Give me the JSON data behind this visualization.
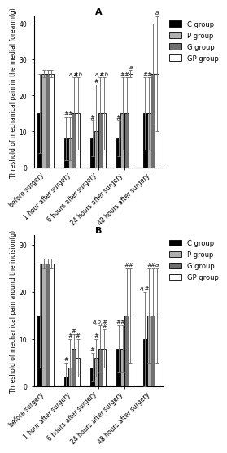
{
  "panel_A": {
    "title": "A",
    "ylabel": "Threshold of mechanical pain in the medial forearm(g)",
    "ylim": [
      0,
      42
    ],
    "yticks": [
      0,
      10,
      20,
      30,
      40
    ],
    "categories": [
      "before surgery",
      "1 hour after surgery",
      "6 hours after surgery",
      "24 hours after surgery",
      "48 hours after surgery"
    ],
    "bar_values": {
      "C": [
        15,
        8,
        8,
        8,
        15
      ],
      "P": [
        26,
        8,
        10,
        15,
        15
      ],
      "G": [
        26,
        15,
        15,
        15,
        26
      ],
      "GP": [
        26,
        15,
        15,
        26,
        26
      ]
    },
    "error_values": {
      "C": [
        11,
        6,
        5,
        5,
        10
      ],
      "P": [
        1,
        6,
        13,
        10,
        10
      ],
      "G": [
        1,
        10,
        10,
        10,
        14
      ],
      "GP": [
        1,
        10,
        10,
        1,
        16
      ]
    },
    "annot_per_group": [
      {
        "time_idx": 1,
        "group": "C",
        "text": "#"
      },
      {
        "time_idx": 1,
        "group": "P",
        "text": "#"
      },
      {
        "time_idx": 1,
        "group": "G",
        "text": "a,#"
      },
      {
        "time_idx": 1,
        "group": "GP",
        "text": "a,b"
      },
      {
        "time_idx": 2,
        "group": "C",
        "text": "#"
      },
      {
        "time_idx": 2,
        "group": "P",
        "text": "#"
      },
      {
        "time_idx": 2,
        "group": "G",
        "text": "a,#"
      },
      {
        "time_idx": 2,
        "group": "GP",
        "text": "a,b"
      },
      {
        "time_idx": 3,
        "group": "C",
        "text": "#"
      },
      {
        "time_idx": 3,
        "group": "P",
        "text": "#"
      },
      {
        "time_idx": 3,
        "group": "G",
        "text": "#"
      },
      {
        "time_idx": 3,
        "group": "GP",
        "text": "a"
      },
      {
        "time_idx": 4,
        "group": "C",
        "text": "#"
      },
      {
        "time_idx": 4,
        "group": "P",
        "text": "#"
      },
      {
        "time_idx": 4,
        "group": "GP",
        "text": "a"
      }
    ]
  },
  "panel_B": {
    "title": "B",
    "ylabel": "Threshold of mechanical pain around the incision(g)",
    "ylim": [
      0,
      32
    ],
    "yticks": [
      0,
      10,
      20,
      30
    ],
    "categories": [
      "before surgery",
      "1 hour after surgery",
      "6 hours after surgery",
      "24 hours after surgery",
      "48 hours after surgery"
    ],
    "bar_values": {
      "C": [
        15,
        2,
        4,
        8,
        10
      ],
      "P": [
        26,
        4,
        6,
        8,
        15
      ],
      "G": [
        26,
        8,
        8,
        15,
        15
      ],
      "GP": [
        26,
        6,
        8,
        15,
        15
      ]
    },
    "error_values": {
      "C": [
        11,
        3,
        3,
        5,
        10
      ],
      "P": [
        1,
        6,
        4,
        5,
        10
      ],
      "G": [
        1,
        3,
        5,
        10,
        10
      ],
      "GP": [
        1,
        4,
        4,
        10,
        10
      ]
    },
    "annot_per_group": [
      {
        "time_idx": 1,
        "group": "C",
        "text": "#"
      },
      {
        "time_idx": 1,
        "group": "P",
        "text": "#"
      },
      {
        "time_idx": 1,
        "group": "G",
        "text": "#"
      },
      {
        "time_idx": 1,
        "group": "GP",
        "text": "#"
      },
      {
        "time_idx": 2,
        "group": "C",
        "text": "#"
      },
      {
        "time_idx": 2,
        "group": "P",
        "text": "#"
      },
      {
        "time_idx": 2,
        "group": "G",
        "text": "a,b,#"
      },
      {
        "time_idx": 2,
        "group": "GP",
        "text": "#"
      },
      {
        "time_idx": 3,
        "group": "C",
        "text": "#"
      },
      {
        "time_idx": 3,
        "group": "P",
        "text": "#"
      },
      {
        "time_idx": 3,
        "group": "G",
        "text": "#"
      },
      {
        "time_idx": 3,
        "group": "GP",
        "text": "#"
      },
      {
        "time_idx": 4,
        "group": "C",
        "text": "a,#"
      },
      {
        "time_idx": 4,
        "group": "P",
        "text": "#"
      },
      {
        "time_idx": 4,
        "group": "G",
        "text": "#"
      },
      {
        "time_idx": 4,
        "group": "GP",
        "text": "a"
      }
    ]
  },
  "bar_colors": {
    "C": "#000000",
    "P": "#b0b0b0",
    "G": "#707070",
    "GP": "#ffffff"
  },
  "bar_edgecolors": {
    "C": "#000000",
    "P": "#000000",
    "G": "#000000",
    "GP": "#000000"
  },
  "legend_labels": [
    "C group",
    "P group",
    "G group",
    "GP group"
  ],
  "groups": [
    "C",
    "P",
    "G",
    "GP"
  ],
  "bar_width": 0.15,
  "annot_fontsize": 5.0,
  "label_fontsize": 5.5,
  "title_fontsize": 8,
  "tick_fontsize": 5.5,
  "legend_fontsize": 6,
  "elinewidth": 0.7,
  "ecapsize": 1.5
}
